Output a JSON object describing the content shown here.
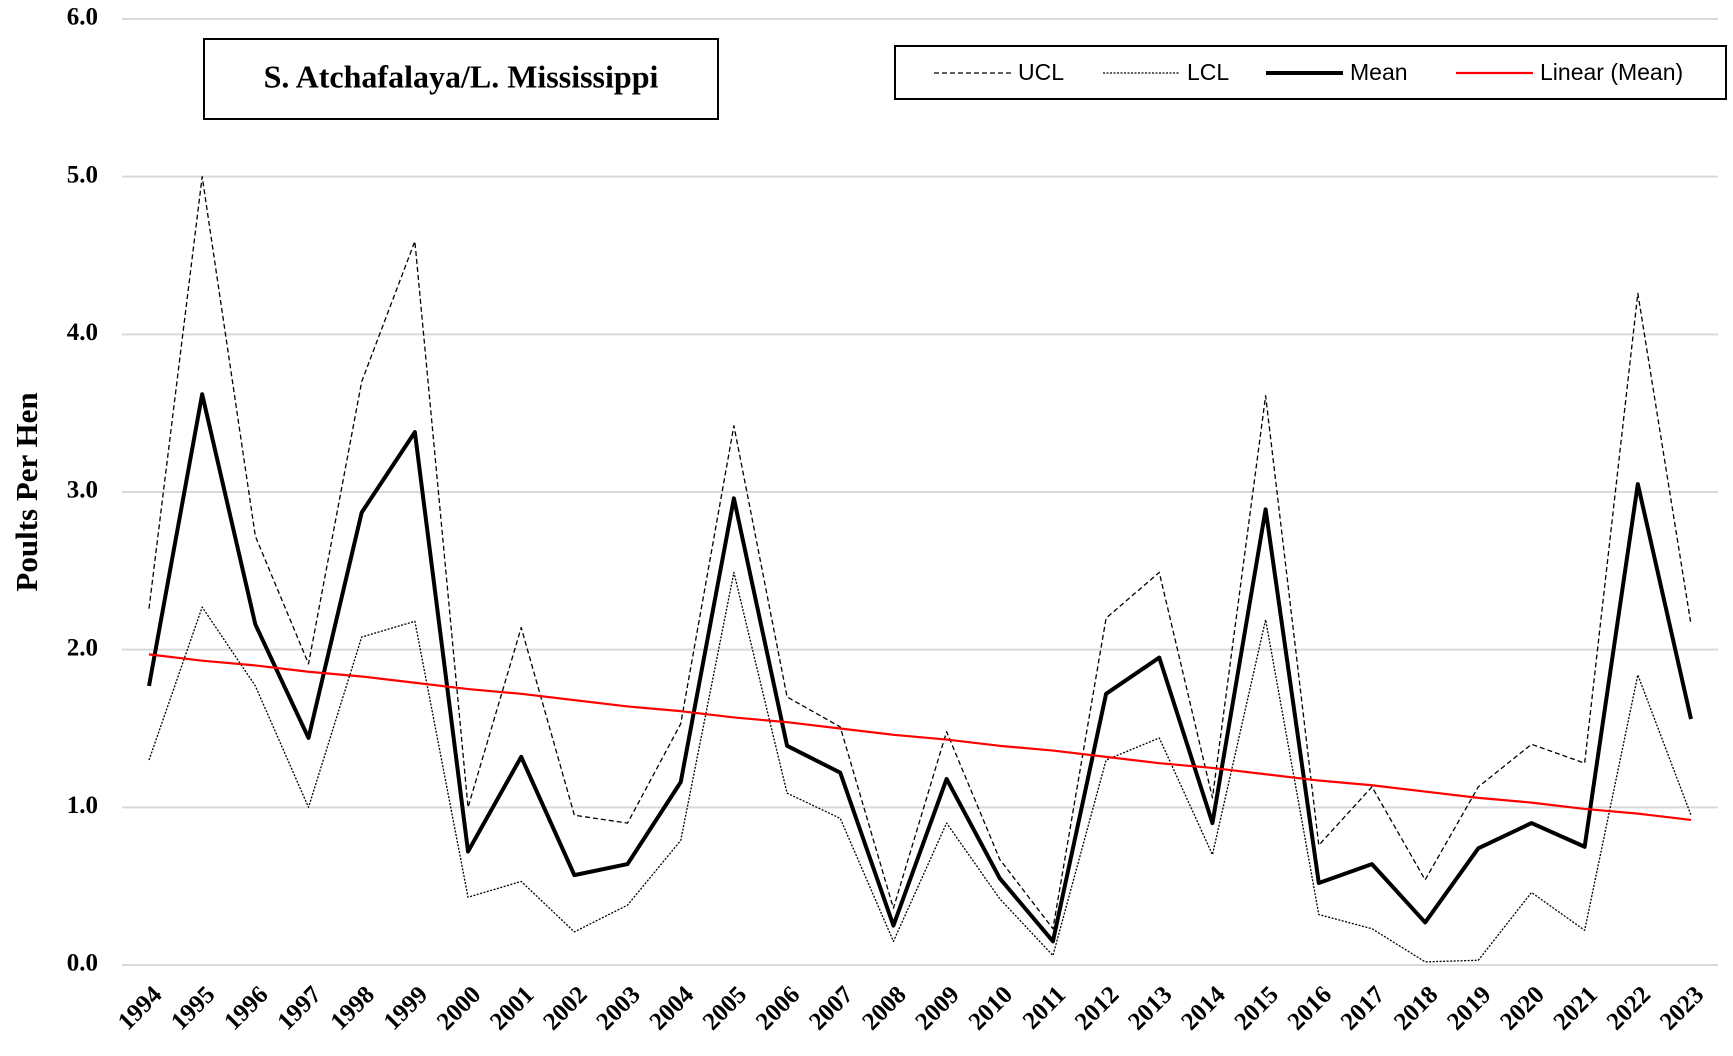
{
  "chart_data": {
    "type": "line",
    "annotation": "S. Atchafalaya/L.  Mississippi",
    "y_label": "Poults Per Hen",
    "categories": [
      "1994",
      "1995",
      "1996",
      "1997",
      "1998",
      "1999",
      "2000",
      "2001",
      "2002",
      "2003",
      "2004",
      "2005",
      "2006",
      "2007",
      "2008",
      "2009",
      "2010",
      "2011",
      "2012",
      "2013",
      "2014",
      "2015",
      "2016",
      "2017",
      "2018",
      "2019",
      "2020",
      "2021",
      "2022",
      "2023"
    ],
    "ylim": [
      0,
      6
    ],
    "yticks": [
      {
        "value": 0,
        "label": "0.0"
      },
      {
        "value": 1,
        "label": "1.0"
      },
      {
        "value": 2,
        "label": "2.0"
      },
      {
        "value": 3,
        "label": "3.0"
      },
      {
        "value": 4,
        "label": "4.0"
      },
      {
        "value": 5,
        "label": "5.0"
      },
      {
        "value": 6,
        "label": "6.0"
      }
    ],
    "grid": true,
    "legend": "top-right",
    "series": [
      {
        "name": "UCL",
        "color": "#000000",
        "dash": "dashed",
        "values": [
          2.26,
          5.0,
          2.72,
          1.91,
          3.7,
          4.59,
          1.0,
          2.14,
          0.95,
          0.9,
          1.53,
          3.42,
          1.7,
          1.51,
          0.36,
          1.48,
          0.67,
          0.23,
          2.2,
          2.49,
          1.06,
          3.61,
          0.76,
          1.13,
          0.54,
          1.13,
          1.4,
          1.28,
          4.26,
          2.16
        ]
      },
      {
        "name": "LCL",
        "color": "#000000",
        "dash": "dotted",
        "values": [
          1.3,
          2.27,
          1.77,
          1.0,
          2.08,
          2.18,
          0.43,
          0.53,
          0.21,
          0.38,
          0.79,
          2.49,
          1.09,
          0.93,
          0.15,
          0.9,
          0.42,
          0.06,
          1.3,
          1.44,
          0.7,
          2.19,
          0.32,
          0.23,
          0.02,
          0.03,
          0.46,
          0.22,
          1.84,
          0.95
        ]
      },
      {
        "name": "Mean",
        "color": "#000000",
        "dash": "solid-thick",
        "values": [
          1.77,
          3.62,
          2.16,
          1.44,
          2.87,
          3.38,
          0.72,
          1.32,
          0.57,
          0.64,
          1.16,
          2.96,
          1.39,
          1.22,
          0.25,
          1.18,
          0.55,
          0.15,
          1.72,
          1.95,
          0.9,
          2.89,
          0.52,
          0.64,
          0.27,
          0.74,
          0.9,
          0.75,
          3.05,
          1.56
        ]
      },
      {
        "name": "Linear (Mean)",
        "color": "#ff0000",
        "dash": "solid",
        "values": [
          1.97,
          1.93,
          1.9,
          1.86,
          1.83,
          1.79,
          1.75,
          1.72,
          1.68,
          1.64,
          1.61,
          1.57,
          1.54,
          1.5,
          1.46,
          1.43,
          1.39,
          1.36,
          1.32,
          1.28,
          1.25,
          1.21,
          1.17,
          1.14,
          1.1,
          1.06,
          1.03,
          0.99,
          0.96,
          0.92
        ]
      }
    ]
  }
}
